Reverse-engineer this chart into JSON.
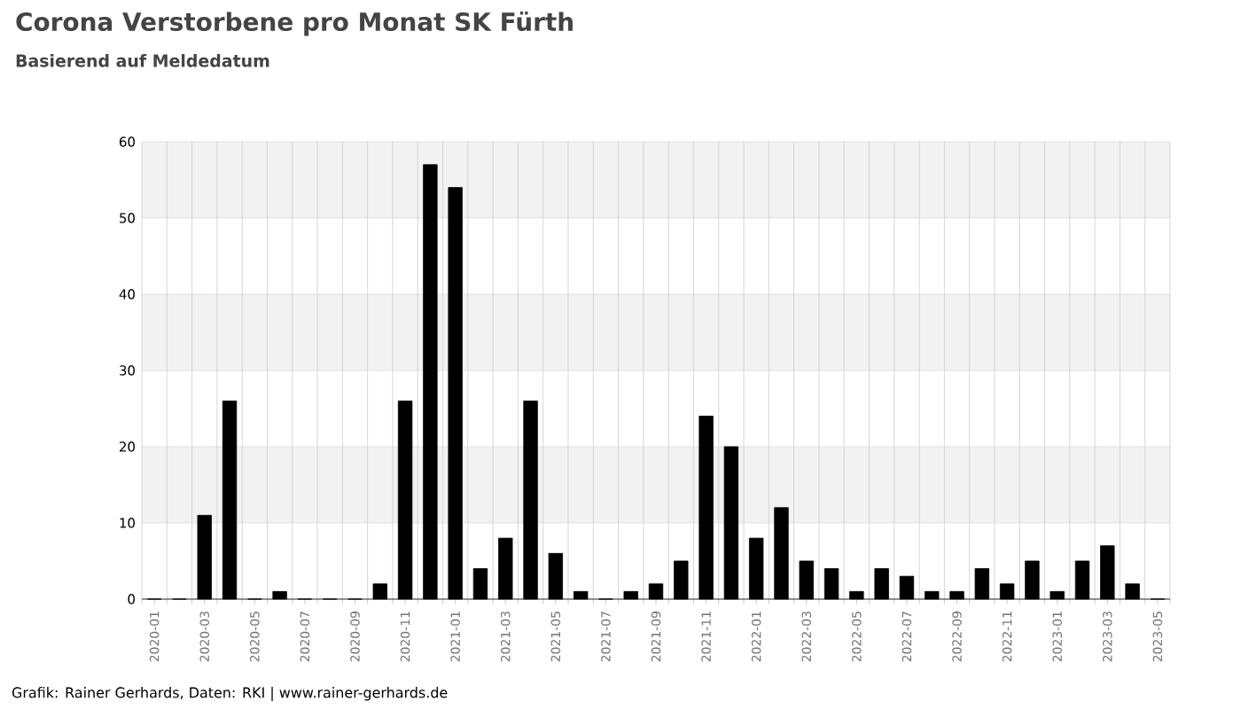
{
  "chart_data": {
    "type": "bar",
    "title": "Corona Verstorbene pro Monat SK Fürth",
    "subtitle": "Basierend auf Meldedatum",
    "categories": [
      "2020-01",
      null,
      "2020-03",
      null,
      "2020-05",
      null,
      "2020-07",
      null,
      "2020-09",
      null,
      "2020-11",
      null,
      "2021-01",
      null,
      "2021-03",
      null,
      "2021-05",
      null,
      "2021-07",
      null,
      "2021-09",
      null,
      "2021-11",
      null,
      "2022-01",
      null,
      "2022-03",
      null,
      "2022-05",
      null,
      "2022-07",
      null,
      "2022-09",
      null,
      "2022-11",
      null,
      "2023-01",
      null,
      "2023-03",
      null,
      "2023-05"
    ],
    "values": [
      0,
      0,
      11,
      26,
      0,
      1,
      0,
      0,
      0,
      2,
      26,
      57,
      54,
      4,
      8,
      26,
      6,
      1,
      0,
      1,
      2,
      5,
      24,
      20,
      8,
      12,
      5,
      4,
      1,
      4,
      3,
      1,
      1,
      4,
      2,
      5,
      1,
      5,
      7,
      2,
      0
    ],
    "color": "#000000",
    "ylim": [
      0,
      60
    ],
    "yticks": [
      0,
      10,
      20,
      30,
      40,
      50,
      60
    ],
    "grid": true,
    "bands": [
      {
        "axis": "y",
        "from": 10,
        "to": 20,
        "color": "#f2f2f2"
      },
      {
        "axis": "y",
        "from": 30,
        "to": 40,
        "color": "#f2f2f2"
      },
      {
        "axis": "y",
        "from": 50,
        "to": 60,
        "color": "#f2f2f2"
      }
    ],
    "annotations": [
      "Grafik: Rainer Gerhards, Daten: RKI | www.rainer-gerhards.de"
    ]
  }
}
